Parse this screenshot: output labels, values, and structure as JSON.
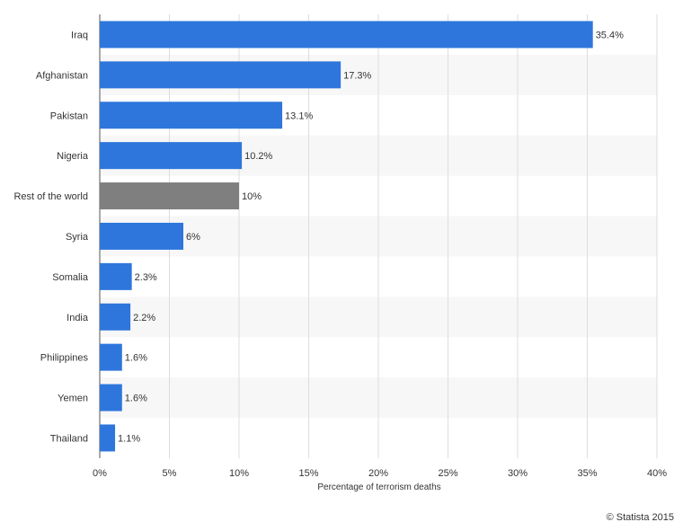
{
  "chart_data": {
    "type": "bar",
    "orientation": "horizontal",
    "categories": [
      "Iraq",
      "Afghanistan",
      "Pakistan",
      "Nigeria",
      "Rest of the world",
      "Syria",
      "Somalia",
      "India",
      "Philippines",
      "Yemen",
      "Thailand"
    ],
    "values": [
      35.4,
      17.3,
      13.1,
      10.2,
      10,
      6,
      2.3,
      2.2,
      1.6,
      1.6,
      1.1
    ],
    "value_labels": [
      "35.4%",
      "17.3%",
      "13.1%",
      "10.2%",
      "10%",
      "6%",
      "2.3%",
      "2.2%",
      "1.6%",
      "1.6%",
      "1.1%"
    ],
    "x_ticks": [
      0,
      5,
      10,
      15,
      20,
      25,
      30,
      35,
      40
    ],
    "x_tick_labels": [
      "0%",
      "5%",
      "10%",
      "15%",
      "20%",
      "25%",
      "30%",
      "35%",
      "40%"
    ],
    "xlim": [
      0,
      40
    ],
    "xlabel": "Percentage of terrorism deaths",
    "ylabel": "",
    "title": "",
    "grid": true,
    "alternating_row_bands": true,
    "colors": {
      "bar": "#2e76dc",
      "highlight_bar": "#7f7f7f",
      "band": "#f7f7f7",
      "grid": "#dddddd",
      "text": "#333333"
    },
    "highlight_categories": [
      "Rest of the world"
    ]
  },
  "credit": "© Statista 2015"
}
